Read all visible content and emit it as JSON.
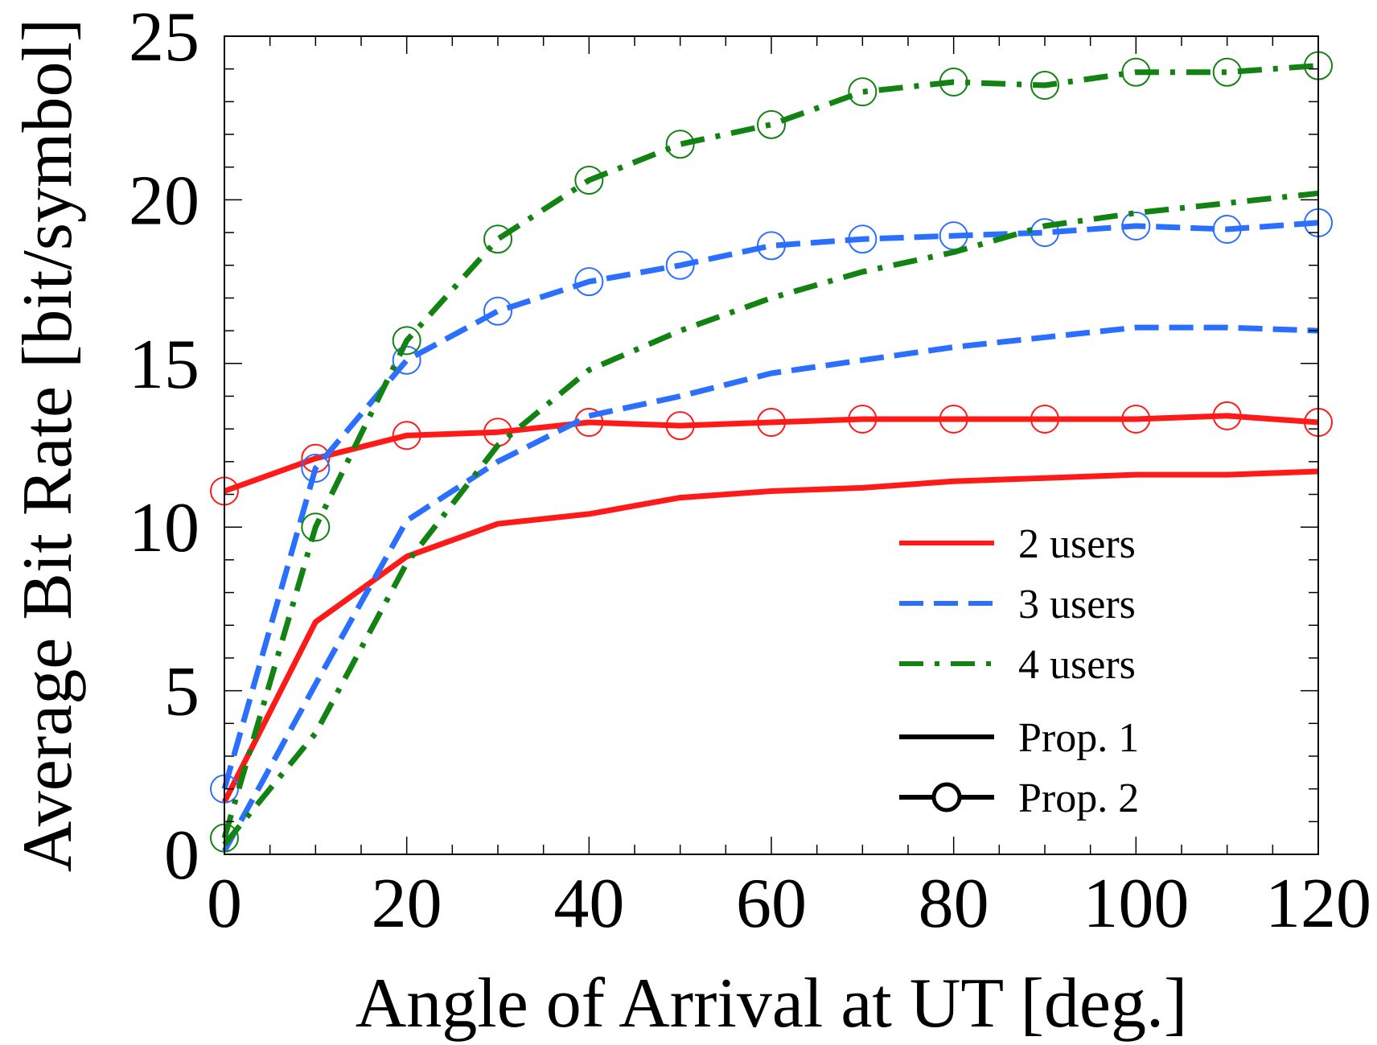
{
  "chart_data": {
    "type": "line",
    "title": "",
    "xlabel": "Angle of Arrival at UT [deg.]",
    "ylabel": "Average Bit Rate [bit/symbol]",
    "xlim": [
      0,
      120
    ],
    "ylim": [
      0,
      25
    ],
    "xticks": [
      0,
      20,
      40,
      60,
      80,
      100,
      120
    ],
    "yticks": [
      0,
      5,
      10,
      15,
      20,
      25
    ],
    "xtick_labels": [
      "0",
      "20",
      "40",
      "60",
      "80",
      "100",
      "120"
    ],
    "ytick_labels": [
      "0",
      "5",
      "10",
      "15",
      "20",
      "25"
    ],
    "grid": false,
    "legend_position": "lower-right",
    "x": [
      0,
      10,
      20,
      30,
      40,
      50,
      60,
      70,
      80,
      90,
      100,
      110,
      120
    ],
    "series": [
      {
        "name": "2 users, Prop. 1",
        "users": 2,
        "method": "Prop. 1",
        "color": "#ff1a1a",
        "dash": "solid",
        "marker": "none",
        "values": [
          1.6,
          7.1,
          9.1,
          10.1,
          10.4,
          10.9,
          11.1,
          11.2,
          11.4,
          11.5,
          11.6,
          11.6,
          11.7
        ]
      },
      {
        "name": "2 users, Prop. 2",
        "users": 2,
        "method": "Prop. 2",
        "color": "#ff1a1a",
        "dash": "solid",
        "marker": "circle",
        "values": [
          11.1,
          12.1,
          12.8,
          12.9,
          13.2,
          13.1,
          13.2,
          13.3,
          13.3,
          13.3,
          13.3,
          13.4,
          13.2
        ]
      },
      {
        "name": "3 users, Prop. 1",
        "users": 3,
        "method": "Prop. 1",
        "color": "#2b6fff",
        "dash": "dashed",
        "marker": "none",
        "values": [
          0.1,
          5.2,
          10.2,
          12.0,
          13.4,
          14.0,
          14.7,
          15.1,
          15.5,
          15.8,
          16.1,
          16.1,
          16.0
        ]
      },
      {
        "name": "3 users, Prop. 2",
        "users": 3,
        "method": "Prop. 2",
        "color": "#2b6fff",
        "dash": "dashed",
        "marker": "circle",
        "values": [
          2.0,
          11.8,
          15.1,
          16.6,
          17.5,
          18.0,
          18.6,
          18.8,
          18.9,
          19.0,
          19.2,
          19.1,
          19.3
        ]
      },
      {
        "name": "4 users, Prop. 1",
        "users": 4,
        "method": "Prop. 1",
        "color": "#128212",
        "dash": "dashdot",
        "marker": "none",
        "values": [
          0.3,
          3.7,
          8.9,
          12.5,
          14.8,
          16.0,
          17.0,
          17.8,
          18.4,
          19.2,
          19.6,
          19.9,
          20.2
        ]
      },
      {
        "name": "4 users, Prop. 2",
        "users": 4,
        "method": "Prop. 2",
        "color": "#128212",
        "dash": "dashdot",
        "marker": "circle",
        "values": [
          0.5,
          10.0,
          15.7,
          18.8,
          20.6,
          21.7,
          22.3,
          23.3,
          23.6,
          23.5,
          23.9,
          23.9,
          24.1
        ]
      }
    ],
    "legend": [
      {
        "label": "2 users",
        "color": "#ff1a1a",
        "dash": "solid",
        "marker": "none"
      },
      {
        "label": "3 users",
        "color": "#2b6fff",
        "dash": "dashed",
        "marker": "none"
      },
      {
        "label": "4 users",
        "color": "#128212",
        "dash": "dashdot",
        "marker": "none"
      },
      {
        "label": "Prop. 1",
        "color": "#000000",
        "dash": "solid",
        "marker": "none"
      },
      {
        "label": "Prop. 2",
        "color": "#000000",
        "dash": "solid",
        "marker": "circle"
      }
    ]
  }
}
